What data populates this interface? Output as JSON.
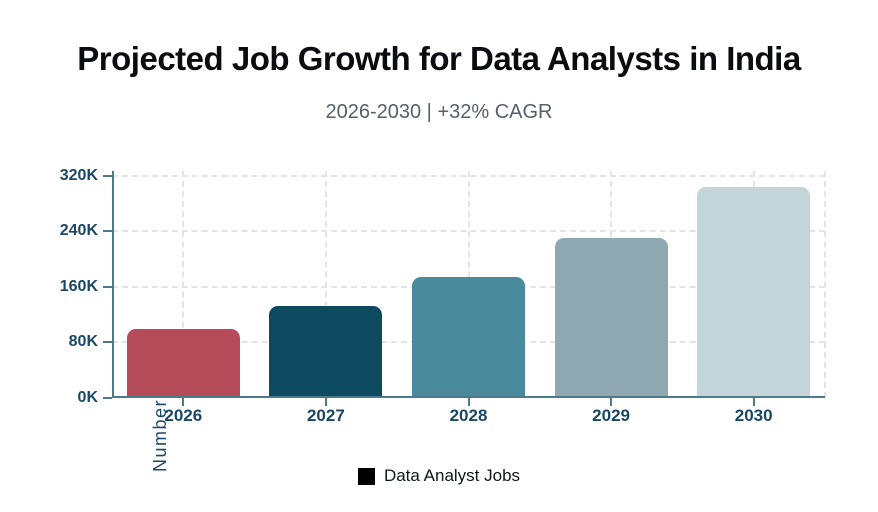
{
  "header": {
    "title": "Projected Job Growth for Data Analysts in India",
    "subtitle": "2026-2030 | +32% CAGR"
  },
  "legend": {
    "label": "Data Analyst Jobs",
    "swatch_color": "#000000"
  },
  "chart_data": {
    "type": "bar",
    "title": "Projected Job Growth for Data Analysts in India",
    "subtitle": "2026-2030 | +32% CAGR",
    "categories": [
      "2026",
      "2027",
      "2028",
      "2029",
      "2030"
    ],
    "series": [
      {
        "name": "Data Analyst Jobs",
        "values": [
          100000,
          132000,
          174000,
          230000,
          304000
        ]
      }
    ],
    "bar_colors": [
      "#b64b59",
      "#0d4a60",
      "#4a8a9d",
      "#90a8b1",
      "#c4d5da"
    ],
    "xlabel": "",
    "ylabel": "Number of Jo",
    "ytick_labels": [
      "0K",
      "80K",
      "160K",
      "240K",
      "320K"
    ],
    "ytick_values": [
      0,
      80000,
      160000,
      240000,
      320000
    ],
    "ylim": [
      0,
      327000
    ],
    "grid": "dashed",
    "legend_position": "bottom"
  },
  "colors": {
    "background": "#ffffff",
    "title": "#0a0c10",
    "subtitle": "#55606c",
    "axis_line": "#4d7a89",
    "tick_label": "#1a4766",
    "grid_line": "#e4e4e4",
    "legend_text": "#10151c"
  }
}
